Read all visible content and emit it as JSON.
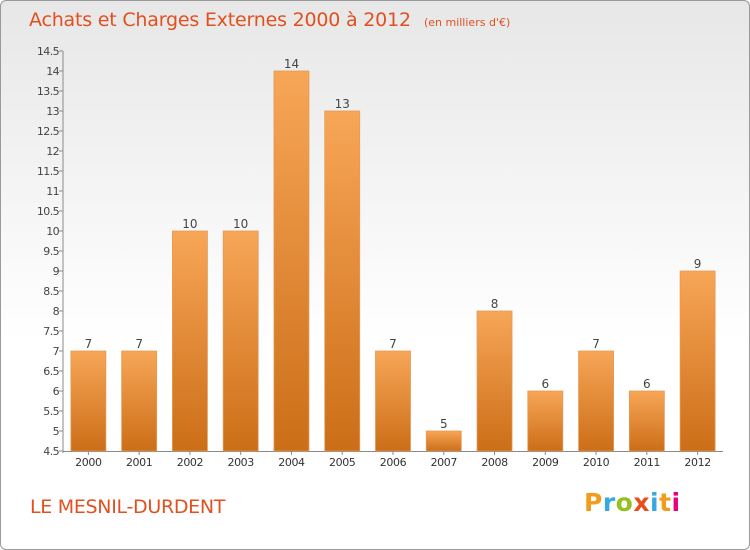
{
  "header": {
    "title": "Achats et Charges Externes 2000 à 2012",
    "subtitle": "(en milliers d'€)"
  },
  "footer": {
    "location": "LE MESNIL-DURDENT",
    "logo_text": "Proxiti"
  },
  "colors": {
    "bar_top": "#f7a657",
    "bar_bottom": "#cc6e18",
    "accent": "#e1501f"
  },
  "chart_data": {
    "type": "bar",
    "title": "Achats et Charges Externes 2000 à 2012",
    "subtitle": "(en milliers d'€)",
    "xlabel": "",
    "ylabel": "",
    "categories": [
      "2000",
      "2001",
      "2002",
      "2003",
      "2004",
      "2005",
      "2006",
      "2007",
      "2008",
      "2009",
      "2010",
      "2011",
      "2012"
    ],
    "values": [
      7,
      7,
      10,
      10,
      14,
      13,
      7,
      5,
      8,
      6,
      7,
      6,
      9
    ],
    "ylim": [
      4.5,
      14.5
    ],
    "yticks": [
      "4.5",
      "5",
      "5.5",
      "6",
      "6.5",
      "7",
      "7.5",
      "8",
      "8.5",
      "9",
      "9.5",
      "10",
      "10.5",
      "11",
      "11.5",
      "12",
      "12.5",
      "13",
      "13.5",
      "14",
      "14.5"
    ],
    "grid": false,
    "legend": "none"
  }
}
